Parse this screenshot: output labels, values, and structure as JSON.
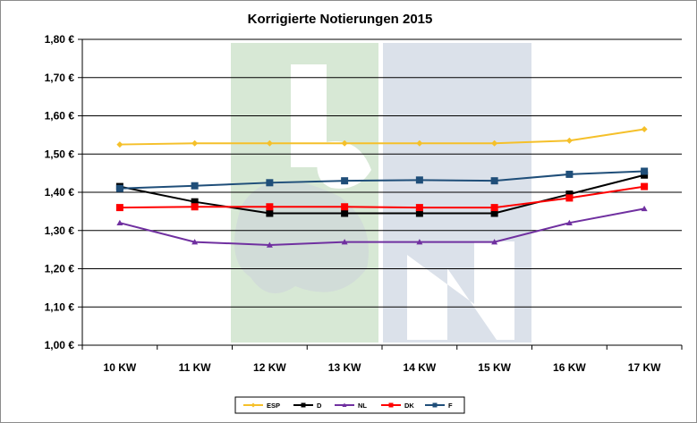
{
  "chart_data": {
    "type": "line",
    "title": "Korrigierte Notierungen 2015",
    "categories": [
      "10 KW",
      "11 KW",
      "12 KW",
      "13 KW",
      "14 KW",
      "15 KW",
      "16 KW",
      "17 KW"
    ],
    "ylim": [
      1.0,
      1.8
    ],
    "yticks": [
      1.0,
      1.1,
      1.2,
      1.3,
      1.4,
      1.5,
      1.6,
      1.7,
      1.8
    ],
    "ytick_labels": [
      "1,00 €",
      "1,10 €",
      "1,20 €",
      "1,30 €",
      "1,40 €",
      "1,50 €",
      "1,60 €",
      "1,70 €",
      "1,80 €"
    ],
    "grid": true,
    "legend_position": "bottom",
    "series": [
      {
        "name": "ESP",
        "color": "#F5C02A",
        "marker": "diamond",
        "values": [
          1.525,
          1.528,
          1.528,
          1.528,
          1.528,
          1.528,
          1.535,
          1.565
        ]
      },
      {
        "name": "D",
        "color": "#000000",
        "marker": "square",
        "values": [
          1.415,
          1.375,
          1.345,
          1.345,
          1.345,
          1.345,
          1.395,
          1.445
        ]
      },
      {
        "name": "NL",
        "color": "#7030A0",
        "marker": "triangle",
        "values": [
          1.32,
          1.27,
          1.262,
          1.27,
          1.27,
          1.27,
          1.32,
          1.357
        ]
      },
      {
        "name": "DK",
        "color": "#FF0000",
        "marker": "square",
        "values": [
          1.36,
          1.362,
          1.362,
          1.362,
          1.36,
          1.36,
          1.385,
          1.415
        ]
      },
      {
        "name": "F",
        "color": "#1F4E79",
        "marker": "square",
        "values": [
          1.41,
          1.417,
          1.425,
          1.43,
          1.432,
          1.43,
          1.447,
          1.455
        ]
      }
    ]
  }
}
